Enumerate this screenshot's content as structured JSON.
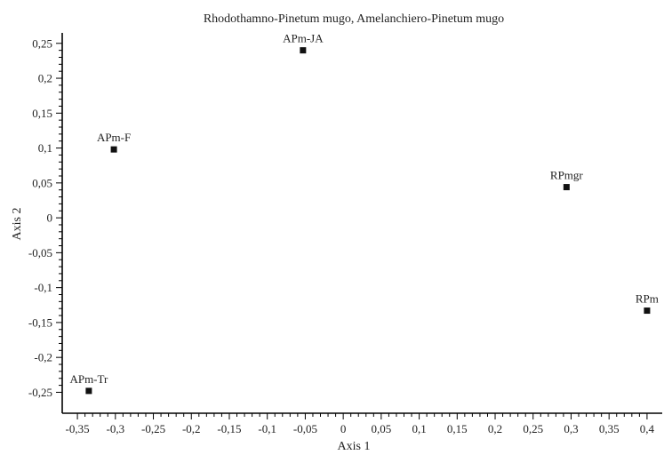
{
  "chart_data": {
    "type": "scatter",
    "title": "Rhodothamno-Pinetum mugo, Amelanchiero-Pinetum mugo",
    "xlabel": "Axis 1",
    "ylabel": "Axis 2",
    "xlim": [
      -0.37,
      0.42
    ],
    "ylim": [
      -0.28,
      0.265
    ],
    "x_ticks": [
      -0.35,
      -0.3,
      -0.25,
      -0.2,
      -0.15,
      -0.1,
      -0.05,
      0,
      0.05,
      0.1,
      0.15,
      0.2,
      0.25,
      0.3,
      0.35,
      0.4
    ],
    "x_tick_labels": [
      "-0,35",
      "-0,3",
      "-0,25",
      "-0,2",
      "-0,15",
      "-0,1",
      "-0,05",
      "0",
      "0,05",
      "0,1",
      "0,15",
      "0,2",
      "0,25",
      "0,3",
      "0,35",
      "0,4"
    ],
    "y_ticks": [
      0.25,
      0.2,
      0.15,
      0.1,
      0.05,
      0,
      -0.05,
      -0.1,
      -0.15,
      -0.2,
      -0.25
    ],
    "y_tick_labels": [
      "0,25",
      "0,2",
      "0,15",
      "0,1",
      "0,05",
      "0",
      "-0,05",
      "-0,1",
      "-0,15",
      "-0,2",
      "-0,25"
    ],
    "grid": false,
    "marker_color": "#111111",
    "points": [
      {
        "label": "APm-JA",
        "x": -0.053,
        "y": 0.24
      },
      {
        "label": "APm-F",
        "x": -0.302,
        "y": 0.098
      },
      {
        "label": "RPmgr",
        "x": 0.294,
        "y": 0.044
      },
      {
        "label": "RPm",
        "x": 0.4,
        "y": -0.133
      },
      {
        "label": "APm-Tr",
        "x": -0.335,
        "y": -0.248
      }
    ]
  }
}
